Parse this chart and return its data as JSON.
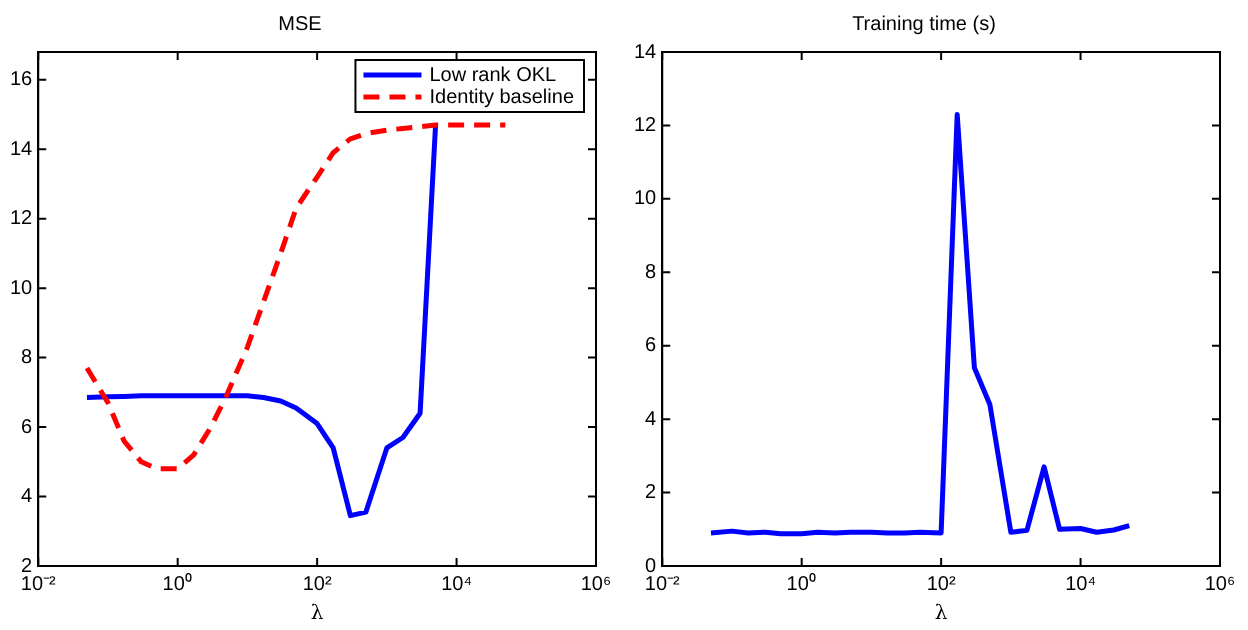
{
  "chart_data": [
    {
      "type": "line",
      "title": "MSE",
      "xlabel": "λ",
      "log": "x",
      "legend": "top right",
      "marker": "none",
      "grid": false,
      "xlim": [
        0.01,
        1000000
      ],
      "xticks": [
        {
          "value": 0.01,
          "label": "10⁻²"
        },
        {
          "value": 1,
          "label": "10⁰"
        },
        {
          "value": 100,
          "label": "10²"
        },
        {
          "value": 10000,
          "label": "10⁴"
        },
        {
          "value": 1000000,
          "label": "10⁶"
        }
      ],
      "ylim": [
        2,
        16.8
      ],
      "yticks": [
        2,
        4,
        6,
        8,
        10,
        12,
        14,
        16
      ],
      "x": [
        0.05,
        0.1,
        0.17,
        0.3,
        0.5,
        1,
        1.7,
        3,
        5,
        10,
        17,
        30,
        50,
        100,
        170,
        300,
        500,
        1000,
        1700,
        3000,
        5000,
        10000,
        17000,
        30000,
        50000
      ],
      "series": [
        {
          "name": "Low rank OKL",
          "color": "#0000ff",
          "line_style": "solid",
          "values": [
            6.85,
            6.87,
            6.88,
            6.9,
            6.9,
            6.9,
            6.9,
            6.9,
            6.9,
            6.9,
            6.85,
            6.75,
            6.55,
            6.1,
            5.4,
            3.45,
            3.55,
            5.4,
            5.7,
            6.4,
            14.7,
            null,
            null,
            null,
            null
          ]
        },
        {
          "name": "Identity baseline",
          "color": "#ff0000",
          "line_style": "dashed",
          "values": [
            7.7,
            6.7,
            5.6,
            5.0,
            4.8,
            4.8,
            5.2,
            6.0,
            6.9,
            8.3,
            9.6,
            11.0,
            12.3,
            13.2,
            13.9,
            14.3,
            14.45,
            14.55,
            14.6,
            14.65,
            14.7,
            14.7,
            14.7,
            14.7,
            14.7
          ]
        }
      ]
    },
    {
      "type": "line",
      "title": "Training time (s)",
      "xlabel": "λ",
      "log": "x",
      "legend": false,
      "marker": "none",
      "grid": false,
      "xlim": [
        0.01,
        1000000
      ],
      "xticks": [
        {
          "value": 0.01,
          "label": "10⁻²"
        },
        {
          "value": 1,
          "label": "10⁰"
        },
        {
          "value": 100,
          "label": "10²"
        },
        {
          "value": 10000,
          "label": "10⁴"
        },
        {
          "value": 1000000,
          "label": "10⁶"
        }
      ],
      "ylim": [
        0,
        14
      ],
      "yticks": [
        0,
        2,
        4,
        6,
        8,
        10,
        12,
        14
      ],
      "x": [
        0.05,
        0.1,
        0.17,
        0.3,
        0.5,
        1,
        1.7,
        3,
        5,
        10,
        17,
        30,
        50,
        100,
        170,
        300,
        500,
        1000,
        1700,
        3000,
        5000,
        10000,
        17000,
        30000,
        50000
      ],
      "series": [
        {
          "color": "#0000ff",
          "line_style": "solid",
          "values": [
            0.9,
            0.95,
            0.9,
            0.92,
            0.88,
            0.88,
            0.92,
            0.9,
            0.92,
            0.92,
            0.9,
            0.9,
            0.92,
            0.9,
            12.3,
            5.4,
            4.4,
            0.92,
            0.97,
            2.7,
            1.0,
            1.02,
            0.92,
            0.98,
            1.1
          ]
        }
      ]
    }
  ]
}
